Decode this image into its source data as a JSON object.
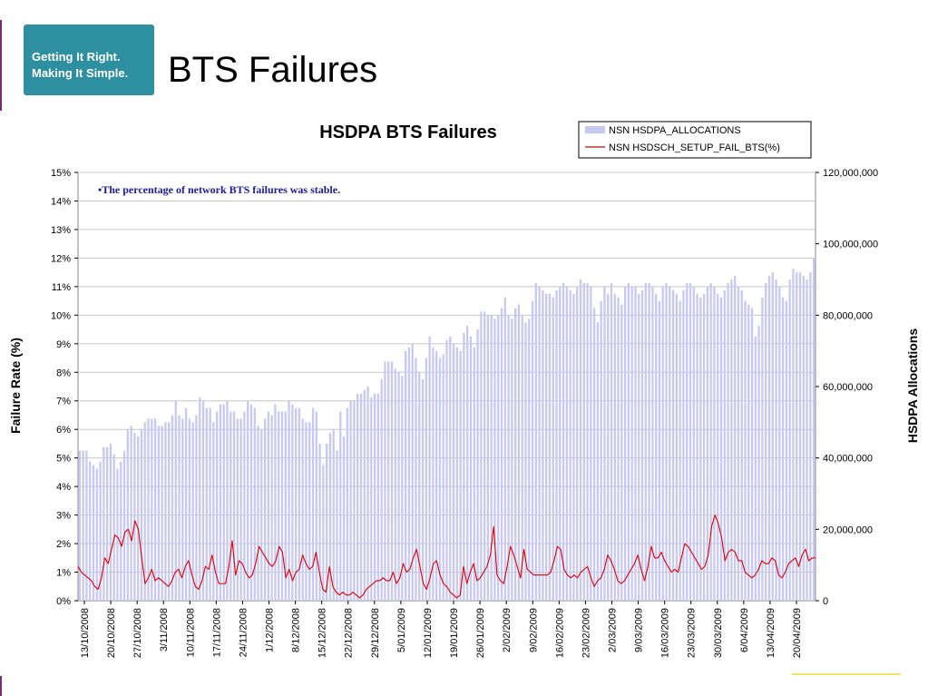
{
  "logo": {
    "line1": "Getting It Right.",
    "line2": "Making It Simple."
  },
  "page_title": "BTS Failures",
  "chart_data": {
    "type": "bar+line",
    "title": "HSDPA BTS Failures",
    "annotation": "•The percentage of network BTS failures was stable.",
    "ylabel": "Failure Rate (%)",
    "y2label": "HSDPA Allocations",
    "ylim": [
      0,
      15
    ],
    "y2lim": [
      0,
      120000000
    ],
    "y_ticks": [
      "0%",
      "1%",
      "2%",
      "3%",
      "4%",
      "5%",
      "6%",
      "7%",
      "8%",
      "9%",
      "10%",
      "11%",
      "12%",
      "13%",
      "14%",
      "15%"
    ],
    "y2_ticks": [
      "0",
      "20,000,000",
      "40,000,000",
      "60,000,000",
      "80,000,000",
      "100,000,000",
      "120,000,000"
    ],
    "grid": true,
    "legend_position": "top-right",
    "x_ticks": [
      "13/10/2008",
      "20/10/2008",
      "27/10/2008",
      "3/11/2008",
      "10/11/2008",
      "17/11/2008",
      "24/11/2008",
      "1/12/2008",
      "8/12/2008",
      "15/12/2008",
      "22/12/2008",
      "29/12/2008",
      "5/01/2009",
      "12/01/2009",
      "19/01/2009",
      "26/01/2009",
      "2/02/2009",
      "9/02/2009",
      "16/02/2009",
      "23/02/2009",
      "2/03/2009",
      "9/03/2009",
      "16/03/2009",
      "23/03/2009",
      "30/03/2009",
      "6/04/2009",
      "13/04/2009",
      "20/04/2009"
    ],
    "series": [
      {
        "name": "NSN HSDPA_ALLOCATIONS",
        "type": "bar",
        "axis": "right",
        "color": "#c8c8f4",
        "values": [
          42000000,
          42000000,
          42000000,
          39000000,
          38000000,
          37000000,
          39000000,
          43000000,
          43000000,
          44000000,
          41000000,
          37000000,
          39000000,
          42000000,
          48000000,
          49000000,
          47000000,
          46000000,
          48000000,
          50000000,
          51000000,
          51000000,
          51000000,
          49000000,
          49000000,
          50000000,
          50000000,
          52000000,
          56000000,
          52000000,
          51000000,
          54000000,
          51000000,
          50000000,
          52000000,
          57000000,
          56000000,
          54000000,
          54000000,
          50000000,
          53000000,
          55000000,
          55000000,
          56000000,
          53000000,
          53000000,
          51000000,
          51000000,
          53000000,
          56000000,
          55000000,
          54000000,
          49000000,
          48000000,
          51000000,
          53000000,
          52000000,
          55000000,
          53000000,
          53000000,
          53000000,
          56000000,
          55000000,
          54000000,
          54000000,
          51000000,
          50000000,
          50000000,
          54000000,
          53000000,
          44000000,
          38000000,
          44000000,
          47000000,
          48000000,
          42000000,
          53000000,
          46000000,
          54000000,
          56000000,
          56000000,
          58000000,
          58000000,
          59000000,
          60000000,
          57000000,
          58000000,
          58000000,
          62000000,
          67000000,
          67000000,
          67000000,
          65000000,
          64000000,
          63000000,
          70000000,
          71000000,
          72000000,
          68000000,
          64000000,
          62000000,
          68000000,
          74000000,
          71000000,
          70000000,
          68000000,
          69000000,
          73000000,
          74000000,
          72000000,
          71000000,
          70000000,
          75000000,
          77000000,
          74000000,
          71000000,
          76000000,
          81000000,
          81000000,
          80000000,
          80000000,
          79000000,
          80000000,
          82000000,
          85000000,
          80000000,
          79000000,
          82000000,
          83000000,
          80000000,
          78000000,
          79000000,
          84000000,
          89000000,
          88000000,
          87000000,
          86000000,
          86000000,
          85000000,
          87000000,
          88000000,
          89000000,
          88000000,
          87000000,
          86000000,
          88000000,
          90000000,
          89000000,
          89000000,
          88000000,
          82000000,
          78000000,
          84000000,
          88000000,
          86000000,
          89000000,
          86000000,
          85000000,
          83000000,
          88000000,
          89000000,
          88000000,
          88000000,
          86000000,
          87000000,
          89000000,
          89000000,
          88000000,
          86000000,
          84000000,
          88000000,
          89000000,
          88000000,
          87000000,
          86000000,
          84000000,
          87000000,
          89000000,
          89000000,
          88000000,
          86000000,
          85000000,
          86000000,
          88000000,
          89000000,
          88000000,
          86000000,
          85000000,
          87000000,
          89000000,
          90000000,
          91000000,
          88000000,
          87000000,
          84000000,
          83000000,
          82000000,
          74000000,
          77000000,
          85000000,
          89000000,
          91000000,
          92000000,
          90000000,
          88000000,
          85000000,
          84000000,
          90000000,
          93000000,
          92000000,
          92000000,
          91000000,
          90000000,
          92000000,
          96000000
        ]
      },
      {
        "name": "NSN HSDSCH_SETUP_FAIL_BTS(%)",
        "type": "line",
        "axis": "left",
        "color": "#e00000",
        "values": [
          1.2,
          1.0,
          0.9,
          0.8,
          0.7,
          0.5,
          0.4,
          0.8,
          1.5,
          1.3,
          1.8,
          2.3,
          2.2,
          1.9,
          2.4,
          2.5,
          2.1,
          2.8,
          2.5,
          1.5,
          0.6,
          0.8,
          1.1,
          0.7,
          0.8,
          0.7,
          0.6,
          0.5,
          0.7,
          1.0,
          1.1,
          0.8,
          1.2,
          1.4,
          0.9,
          0.5,
          0.4,
          0.7,
          1.2,
          1.1,
          1.6,
          1.0,
          0.6,
          0.6,
          0.6,
          1.2,
          2.1,
          0.9,
          1.4,
          1.3,
          1.0,
          0.8,
          0.9,
          1.3,
          1.9,
          1.7,
          1.5,
          1.3,
          1.2,
          1.4,
          1.9,
          1.7,
          0.8,
          1.1,
          0.7,
          1.0,
          1.1,
          1.6,
          1.3,
          1.1,
          1.2,
          1.7,
          1.0,
          0.4,
          0.3,
          1.2,
          0.5,
          0.3,
          0.2,
          0.3,
          0.2,
          0.2,
          0.3,
          0.2,
          0.1,
          0.2,
          0.4,
          0.5,
          0.6,
          0.7,
          0.7,
          0.8,
          0.7,
          0.7,
          1.0,
          0.6,
          0.8,
          1.3,
          1.0,
          1.1,
          1.5,
          1.8,
          1.2,
          0.6,
          0.4,
          0.8,
          1.3,
          1.4,
          0.9,
          0.6,
          0.5,
          0.3,
          0.2,
          0.1,
          0.2,
          1.2,
          0.6,
          1.0,
          1.3,
          0.7,
          0.8,
          1.0,
          1.2,
          1.6,
          2.6,
          0.9,
          0.7,
          0.6,
          1.2,
          1.9,
          1.6,
          1.2,
          0.8,
          1.8,
          1.1,
          1.0,
          0.9,
          0.9,
          0.9,
          0.9,
          0.9,
          1.0,
          1.4,
          1.9,
          1.8,
          1.1,
          0.9,
          0.8,
          0.9,
          0.8,
          1.0,
          1.1,
          1.2,
          0.8,
          0.5,
          0.7,
          0.8,
          1.1,
          1.6,
          1.4,
          1.1,
          0.7,
          0.6,
          0.7,
          0.9,
          1.1,
          1.3,
          1.6,
          1.1,
          0.7,
          1.2,
          1.9,
          1.5,
          1.5,
          1.7,
          1.4,
          1.2,
          1.0,
          1.1,
          1.0,
          1.5,
          2.0,
          1.9,
          1.7,
          1.5,
          1.3,
          1.1,
          1.2,
          1.6,
          2.6,
          3.0,
          2.7,
          2.2,
          1.4,
          1.7,
          1.8,
          1.7,
          1.4,
          1.4,
          1.0,
          0.9,
          0.8,
          0.9,
          1.1,
          1.4,
          1.3,
          1.3,
          1.5,
          1.4,
          0.9,
          0.8,
          1.0,
          1.3,
          1.4,
          1.5,
          1.2,
          1.6,
          1.8,
          1.4,
          1.5,
          1.5
        ]
      }
    ]
  }
}
